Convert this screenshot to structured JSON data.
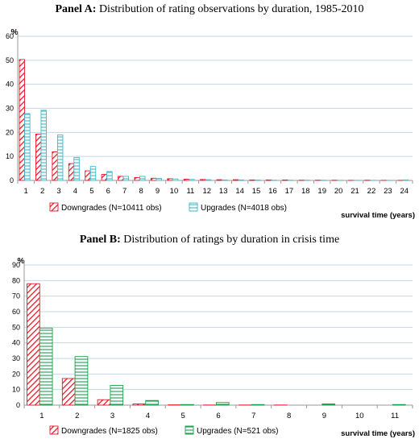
{
  "colors": {
    "downgrades": "#e8182c",
    "upgrades_a": "#3fb8c8",
    "upgrades_b": "#1aa04a",
    "grid": "#c6d6e6",
    "axis": "#9a9a9a"
  },
  "panelA": {
    "title_bold": "Panel A:",
    "title_rest": " Distribution of rating observations by duration, 1985-2010"
  },
  "panelB": {
    "title_bold": "Panel B:",
    "title_rest": " Distribution of ratings by duration in crisis time"
  },
  "chart_data": [
    {
      "type": "bar",
      "title": "Panel A: Distribution of rating observations by duration, 1985-2010",
      "ylabel": "%",
      "xlabel": "survival time  (years)",
      "ylim": [
        0,
        60
      ],
      "yticks": [
        0,
        10,
        20,
        30,
        40,
        50,
        60
      ],
      "grid": true,
      "legend_position": "bottom",
      "categories": [
        "1",
        "2",
        "3",
        "4",
        "5",
        "6",
        "7",
        "8",
        "9",
        "10",
        "11",
        "12",
        "13",
        "14",
        "15",
        "16",
        "17",
        "18",
        "19",
        "20",
        "21",
        "22",
        "23",
        "24"
      ],
      "series": [
        {
          "name": "Downgrades (N=10411 obs)",
          "pattern": "diagonal",
          "values": [
            50.3,
            19.3,
            11.9,
            7.0,
            4.0,
            2.5,
            1.7,
            1.2,
            0.9,
            0.7,
            0.5,
            0.4,
            0.3,
            0.3,
            0.2,
            0.2,
            0.2,
            0.1,
            0.1,
            0.1,
            0.05,
            0.1,
            0.05,
            0.05
          ]
        },
        {
          "name": "Upgrades (N=4018 obs)",
          "pattern": "horizontal",
          "values": [
            27.8,
            29.2,
            18.9,
            9.6,
            5.8,
            3.7,
            1.7,
            1.7,
            0.8,
            0.6,
            0.4,
            0.3,
            0.2,
            0.2,
            0.15,
            0.1,
            0.1,
            0.1,
            0.1,
            0.05,
            0.05,
            0.05,
            0.05,
            0.2
          ]
        }
      ]
    },
    {
      "type": "bar",
      "title": "Panel B: Distribution of ratings by duration in crisis time",
      "ylabel": "%",
      "xlabel": "survival time  (years)",
      "ylim": [
        0,
        90
      ],
      "yticks": [
        0,
        10,
        20,
        30,
        40,
        50,
        60,
        70,
        80,
        90
      ],
      "grid": true,
      "legend_position": "bottom",
      "categories": [
        "1",
        "2",
        "3",
        "4",
        "5",
        "6",
        "7",
        "8",
        "9",
        "10",
        "11"
      ],
      "series": [
        {
          "name": "Downgrades (N=1825 obs)",
          "pattern": "diagonal",
          "values": [
            78.0,
            17.1,
            3.5,
            0.8,
            0.2,
            0.1,
            0.1,
            0.1,
            0.0,
            0.0,
            0.0
          ]
        },
        {
          "name": "Upgrades (N=521 obs)",
          "pattern": "horizontal",
          "values": [
            49.5,
            31.2,
            12.7,
            3.0,
            0.4,
            1.7,
            0.4,
            0.0,
            0.8,
            0.0,
            0.4
          ]
        }
      ]
    }
  ]
}
